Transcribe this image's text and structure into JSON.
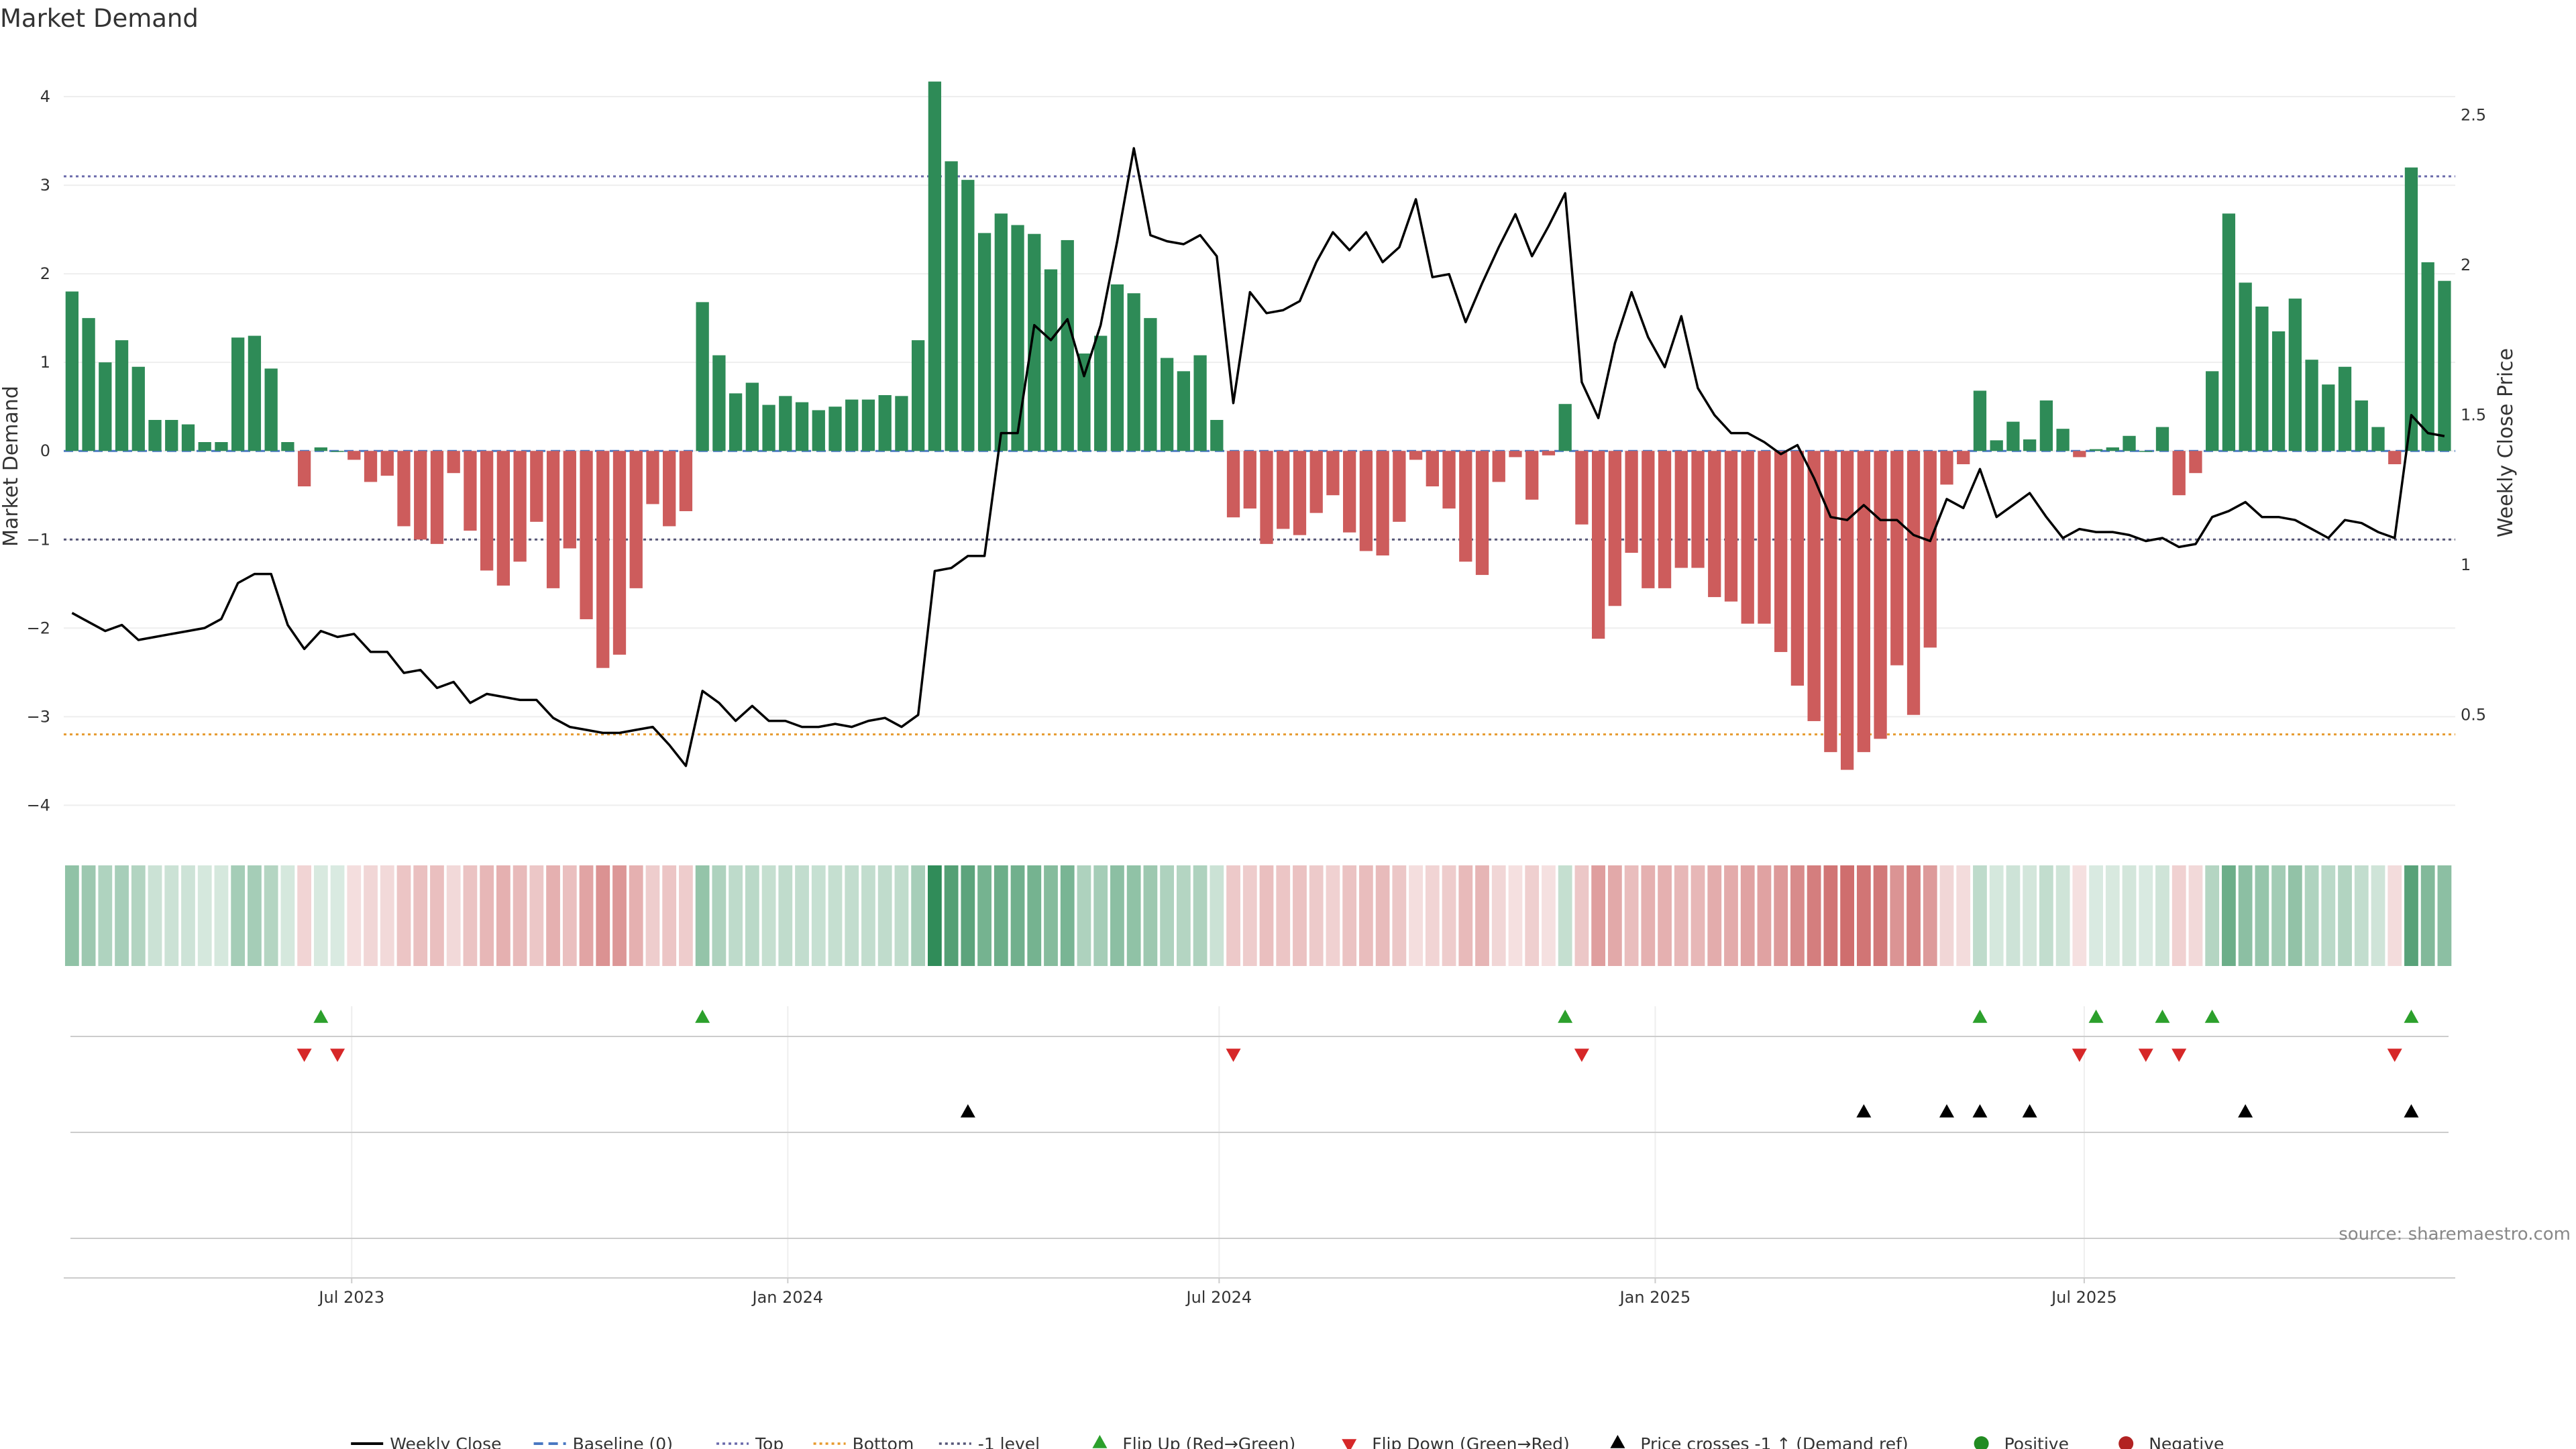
{
  "chart_data": {
    "type": "bar",
    "title": "Market Demand",
    "ylabel": "Market Demand",
    "y2label": "Weekly Close Price",
    "source": "source: sharemaestro.com",
    "ylim": [
      -4.3,
      4.5
    ],
    "y2lim": [
      0.15,
      2.75
    ],
    "yticks": [
      {
        "v": 4,
        "label": "4"
      },
      {
        "v": 3,
        "label": "3"
      },
      {
        "v": 2,
        "label": "2"
      },
      {
        "v": 1,
        "label": "1"
      },
      {
        "v": 0,
        "label": "0"
      },
      {
        "v": -1,
        "label": "−1"
      },
      {
        "v": -2,
        "label": "−2"
      },
      {
        "v": -3,
        "label": "−3"
      },
      {
        "v": -4,
        "label": "−4"
      }
    ],
    "y2ticks": [
      {
        "v": 0.5,
        "label": "0.5"
      },
      {
        "v": 1,
        "label": "1"
      },
      {
        "v": 1.5,
        "label": "1.5"
      },
      {
        "v": 2,
        "label": "2"
      },
      {
        "v": 2.5,
        "label": "2.5"
      }
    ],
    "x_start": "2023-03-05",
    "x_step_days": 7,
    "x_end": "2025-11-30",
    "xticks": [
      {
        "date": "2023-07-01",
        "label": "Jul 2023"
      },
      {
        "date": "2024-01-01",
        "label": "Jan 2024"
      },
      {
        "date": "2024-07-01",
        "label": "Jul 2024"
      },
      {
        "date": "2025-01-01",
        "label": "Jan 2025"
      },
      {
        "date": "2025-07-01",
        "label": "Jul 2025"
      }
    ],
    "levels": {
      "top": 3.1,
      "bottom": -3.2,
      "minus_one": -1,
      "baseline": 0
    },
    "series": [
      {
        "name": "Market Demand",
        "values": [
          1.8,
          1.5,
          1.0,
          1.25,
          0.95,
          0.35,
          0.35,
          0.3,
          0.1,
          0.1,
          1.28,
          1.3,
          0.93,
          0.1,
          -0.4,
          0.04,
          0,
          -0.1,
          -0.35,
          -0.28,
          -0.85,
          -1.0,
          -1.05,
          -0.25,
          -0.9,
          -1.35,
          -1.52,
          -1.25,
          -0.8,
          -1.55,
          -1.1,
          -1.9,
          -2.45,
          -2.3,
          -1.55,
          -0.6,
          -0.85,
          -0.68,
          1.68,
          1.08,
          0.65,
          0.77,
          0.52,
          0.62,
          0.55,
          0.46,
          0.5,
          0.58,
          0.58,
          0.63,
          0.62,
          1.25,
          4.17,
          3.27,
          3.06,
          2.46,
          2.68,
          2.55,
          2.45,
          2.05,
          2.38,
          1.1,
          1.3,
          1.88,
          1.78,
          1.5,
          1.05,
          0.9,
          1.08,
          0.35,
          -0.75,
          -0.65,
          -1.05,
          -0.88,
          -0.95,
          -0.7,
          -0.5,
          -0.92,
          -1.13,
          -1.18,
          -0.8,
          -0.1,
          -0.4,
          -0.65,
          -1.25,
          -1.4,
          -0.35,
          -0.07,
          -0.55,
          -0.05,
          0.53,
          -0.83,
          -2.12,
          -1.75,
          -1.15,
          -1.55,
          -1.55,
          -1.32,
          -1.32,
          -1.65,
          -1.7,
          -1.95,
          -1.95,
          -2.27,
          -2.65,
          -3.05,
          -3.4,
          -3.6,
          -3.4,
          -3.25,
          -2.42,
          -2.98,
          -2.22,
          -0.38,
          -0.15,
          0.68,
          0.12,
          0.33,
          0.13,
          0.57,
          0.25,
          -0.07,
          0.02,
          0.04,
          0.17,
          0.0,
          0.27,
          -0.5,
          -0.25,
          0.9,
          2.68,
          1.9,
          1.63,
          1.35,
          1.72,
          1.03,
          0.75,
          0.95,
          0.57,
          0.27,
          -0.15,
          3.2,
          2.13,
          1.92
        ]
      },
      {
        "name": "Weekly Close",
        "values": [
          0.88,
          0.85,
          0.82,
          0.84,
          0.79,
          0.8,
          0.81,
          0.82,
          0.83,
          0.86,
          0.98,
          1.01,
          1.01,
          0.84,
          0.76,
          0.82,
          0.8,
          0.81,
          0.75,
          0.75,
          0.68,
          0.69,
          0.63,
          0.65,
          0.58,
          0.61,
          0.6,
          0.59,
          0.59,
          0.53,
          0.5,
          0.49,
          0.48,
          0.48,
          0.49,
          0.5,
          0.44,
          0.37,
          0.62,
          0.58,
          0.52,
          0.57,
          0.52,
          0.52,
          0.5,
          0.5,
          0.51,
          0.5,
          0.52,
          0.53,
          0.5,
          0.54,
          1.02,
          1.03,
          1.07,
          1.07,
          1.48,
          1.48,
          1.84,
          1.79,
          1.86,
          1.67,
          1.84,
          2.12,
          2.43,
          2.14,
          2.12,
          2.11,
          2.14,
          2.07,
          1.58,
          1.95,
          1.88,
          1.89,
          1.92,
          2.05,
          2.15,
          2.09,
          2.15,
          2.05,
          2.1,
          2.26,
          2.0,
          2.01,
          1.85,
          1.98,
          2.1,
          2.21,
          2.07,
          2.17,
          2.28,
          1.65,
          1.53,
          1.78,
          1.95,
          1.8,
          1.7,
          1.87,
          1.63,
          1.54,
          1.48,
          1.48,
          1.45,
          1.41,
          1.44,
          1.33,
          1.2,
          1.19,
          1.24,
          1.19,
          1.19,
          1.14,
          1.12,
          1.26,
          1.23,
          1.36,
          1.2,
          1.24,
          1.28,
          1.2,
          1.13,
          1.16,
          1.15,
          1.15,
          1.14,
          1.12,
          1.13,
          1.1,
          1.11,
          1.2,
          1.22,
          1.25,
          1.2,
          1.2,
          1.19,
          1.16,
          1.13,
          1.19,
          1.18,
          1.15,
          1.13,
          1.54,
          1.48,
          1.47
        ]
      }
    ],
    "flip_up_weeks": [
      15,
      38,
      90,
      115,
      122,
      126,
      129,
      141
    ],
    "flip_down_weeks": [
      14,
      16,
      70,
      91,
      121,
      125,
      127,
      140
    ],
    "price_cross_weeks": [
      54,
      108,
      113,
      115,
      118,
      131,
      141
    ],
    "strip_colors": {
      "positive": "#2e8b57",
      "negative": "#c85a5a"
    },
    "colors": {
      "positive_bar": "#2e8b57",
      "negative_bar": "#cd5c5c",
      "close_line": "#000000",
      "top_line": "#6b6bab",
      "bottom_line": "#e69a2e",
      "minus_one_line": "#555577",
      "baseline_line": "#4a78c2",
      "flip_up": "#2ca02c",
      "flip_down": "#d62728",
      "positive_dot": "#228b22",
      "negative_dot": "#b22222"
    },
    "legend": [
      {
        "label": "Weekly Close",
        "kind": "line",
        "color": "#000000"
      },
      {
        "label": "Baseline (0)",
        "kind": "dash",
        "color": "#4a78c2"
      },
      {
        "label": "Top",
        "kind": "dot",
        "color": "#6b6bab"
      },
      {
        "label": "Bottom",
        "kind": "dot",
        "color": "#e69a2e"
      },
      {
        "label": "-1 level",
        "kind": "dot",
        "color": "#555577"
      },
      {
        "label": "Flip Up (Red→Green)",
        "kind": "tri-up",
        "color": "#2ca02c"
      },
      {
        "label": "Flip Down (Green→Red)",
        "kind": "tri-down",
        "color": "#d62728"
      },
      {
        "label": "Price crosses -1 ↑ (Demand ref)",
        "kind": "tri-up",
        "color": "#000000"
      },
      {
        "label": "Positive",
        "kind": "circle",
        "color": "#228b22"
      },
      {
        "label": "Negative",
        "kind": "circle",
        "color": "#b22222"
      }
    ]
  }
}
